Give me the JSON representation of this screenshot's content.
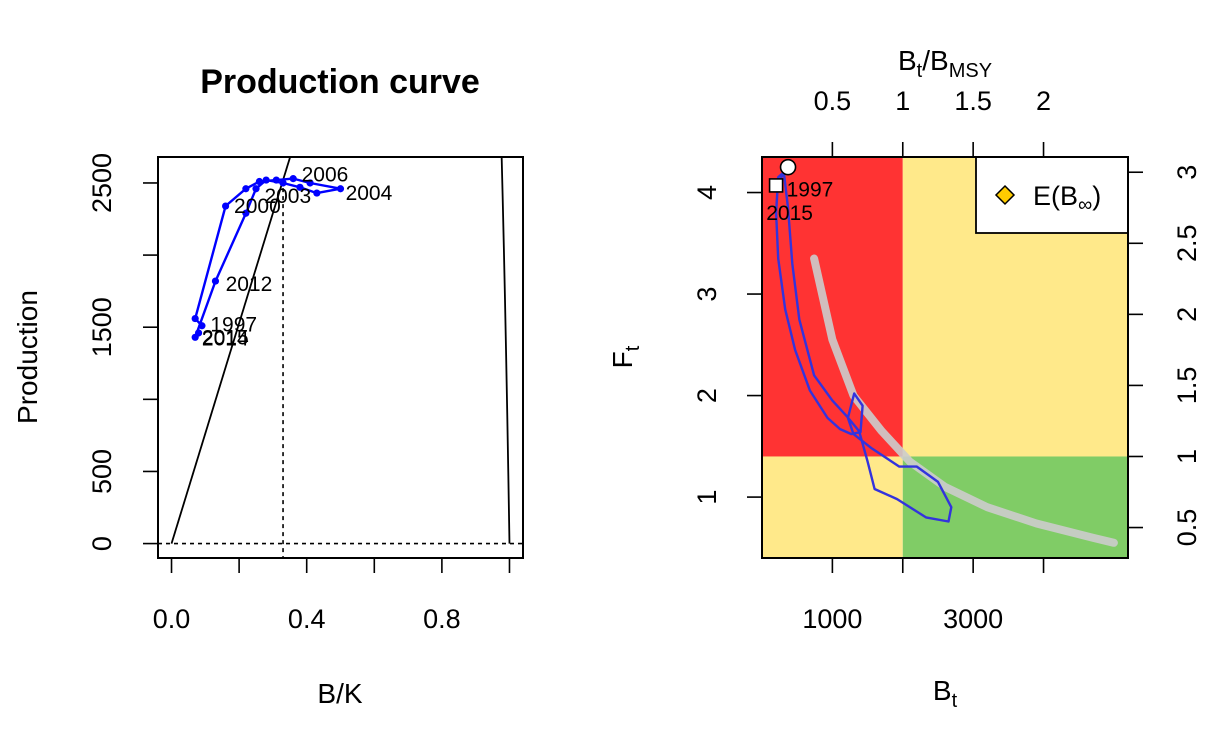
{
  "chart_data": [
    {
      "type": "line",
      "title": "Production curve",
      "xlabel": "B/K",
      "ylabel": "Production",
      "xlim": [
        -0.04,
        1.04
      ],
      "ylim": [
        -100,
        2680
      ],
      "xticks": [
        0.0,
        0.4,
        0.8
      ],
      "xtick_labels": [
        "0.0",
        "0.4",
        "0.8"
      ],
      "xticks_minor": [
        0.2,
        0.6,
        1.0
      ],
      "yticks": [
        0,
        500,
        1000,
        1500,
        2000,
        2500
      ],
      "ytick_labels": [
        "0",
        "500",
        "",
        "1500",
        "",
        "2500"
      ],
      "bmsy_over_k": 0.33,
      "curve": {
        "color": "#000000",
        "shape": "Pella-Tomlinson surplus production, peak at B/K = 0.33",
        "peak_production": 2520
      },
      "series": [
        {
          "color": "#0000ff",
          "points": [
            {
              "x": 0.09,
              "y": 1510
            },
            {
              "x": 0.07,
              "y": 1560
            },
            {
              "x": 0.16,
              "y": 2340
            },
            {
              "x": 0.22,
              "y": 2460
            },
            {
              "x": 0.26,
              "y": 2510
            },
            {
              "x": 0.31,
              "y": 2520
            },
            {
              "x": 0.36,
              "y": 2530
            },
            {
              "x": 0.41,
              "y": 2500
            },
            {
              "x": 0.5,
              "y": 2460
            },
            {
              "x": 0.43,
              "y": 2430
            },
            {
              "x": 0.38,
              "y": 2470
            },
            {
              "x": 0.33,
              "y": 2500
            },
            {
              "x": 0.28,
              "y": 2520
            },
            {
              "x": 0.25,
              "y": 2460
            },
            {
              "x": 0.22,
              "y": 2290
            },
            {
              "x": 0.13,
              "y": 1820
            },
            {
              "x": 0.07,
              "y": 1430
            },
            {
              "x": 0.08,
              "y": 1460
            }
          ]
        }
      ],
      "annotations": [
        {
          "text": "1997",
          "x": 0.115,
          "y": 1520
        },
        {
          "text": "2000",
          "x": 0.185,
          "y": 2340
        },
        {
          "text": "2003",
          "x": 0.275,
          "y": 2410
        },
        {
          "text": "2004",
          "x": 0.515,
          "y": 2430
        },
        {
          "text": "2006",
          "x": 0.385,
          "y": 2560
        },
        {
          "text": "2012",
          "x": 0.16,
          "y": 1800
        },
        {
          "text": "2014",
          "x": 0.09,
          "y": 1420
        },
        {
          "text": "2015",
          "x": 0.09,
          "y": 1430
        }
      ]
    },
    {
      "type": "scatter",
      "xlabel": "B",
      "xlabel_sub": "t",
      "ylabel": "F",
      "ylabel_sub": "t",
      "top_axis_label": {
        "B": "B",
        "t": "t",
        "slash": "/",
        "B2": "B",
        "msy": "MSY"
      },
      "xlim": [
        0,
        5200
      ],
      "ylim": [
        0.4,
        4.35
      ],
      "bmsy": 2000,
      "fmsy": 1.4,
      "xticks": [
        1000,
        2000,
        3000,
        4000
      ],
      "xtick_labels": [
        "1000",
        "",
        "3000",
        ""
      ],
      "yticks": [
        1,
        2,
        3,
        4
      ],
      "ytick_labels": [
        "1",
        "2",
        "3",
        "4"
      ],
      "top_ticks": [
        0.5,
        1.0,
        1.5,
        2.0
      ],
      "top_tick_labels": [
        "0.5",
        "1",
        "1.5",
        "2"
      ],
      "right_ticks": [
        0.5,
        1.0,
        1.5,
        2.0,
        2.5,
        3.0
      ],
      "right_tick_labels": [
        "0.5",
        "1",
        "1.5",
        "2",
        "2.5",
        "3"
      ],
      "zone_colors": {
        "overfishing_overfished": "#ff3333",
        "cautious": "#ffe98a",
        "safe": "#80cc66"
      },
      "equilibrium_band": {
        "color": "#cccccc",
        "points": [
          [
            740,
            3.35
          ],
          [
            1000,
            2.55
          ],
          [
            1300,
            2.0
          ],
          [
            1700,
            1.65
          ],
          [
            2100,
            1.35
          ],
          [
            2600,
            1.1
          ],
          [
            3200,
            0.9
          ],
          [
            3900,
            0.74
          ],
          [
            4700,
            0.6
          ],
          [
            5000,
            0.55
          ]
        ]
      },
      "confidence_contour": {
        "color": "#3333dd",
        "points": [
          [
            230,
            4.15
          ],
          [
            200,
            3.8
          ],
          [
            230,
            3.35
          ],
          [
            330,
            2.85
          ],
          [
            470,
            2.45
          ],
          [
            680,
            2.05
          ],
          [
            930,
            1.78
          ],
          [
            1110,
            1.67
          ],
          [
            1270,
            1.62
          ],
          [
            1400,
            1.64
          ],
          [
            1430,
            1.9
          ],
          [
            1310,
            2.02
          ],
          [
            1220,
            1.78
          ],
          [
            1300,
            1.62
          ],
          [
            1560,
            1.48
          ],
          [
            1950,
            1.3
          ],
          [
            2200,
            1.3
          ],
          [
            2500,
            1.15
          ],
          [
            2690,
            0.9
          ],
          [
            2650,
            0.76
          ],
          [
            2330,
            0.8
          ],
          [
            1920,
            0.98
          ],
          [
            1600,
            1.08
          ],
          [
            1500,
            1.35
          ],
          [
            1380,
            1.65
          ],
          [
            1200,
            1.8
          ],
          [
            1000,
            1.95
          ],
          [
            740,
            2.2
          ],
          [
            530,
            2.75
          ],
          [
            430,
            3.3
          ],
          [
            370,
            3.85
          ],
          [
            310,
            4.2
          ],
          [
            230,
            4.15
          ]
        ]
      },
      "points": [
        {
          "label": "1997",
          "x": 370,
          "y": 4.25,
          "marker": "circle"
        },
        {
          "label": "2015",
          "x": 200,
          "y": 4.07,
          "marker": "square"
        }
      ],
      "legend": {
        "position": "top-right",
        "marker": "diamond",
        "marker_color": "#ffcc00",
        "label_prefix": "E(B",
        "label_sub": "∞",
        "label_suffix": ")"
      }
    }
  ]
}
